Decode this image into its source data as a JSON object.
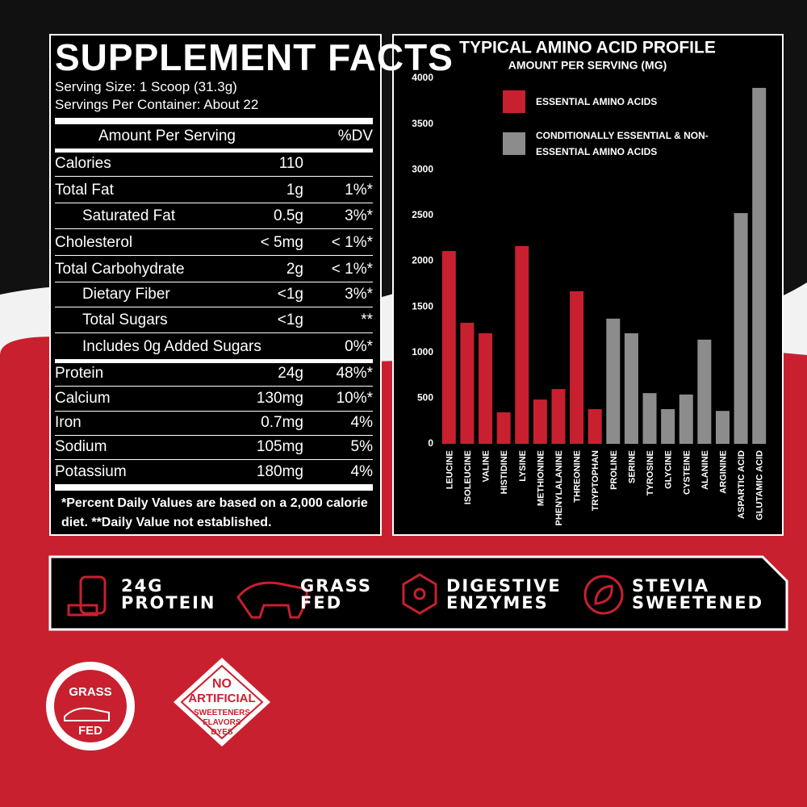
{
  "facts": {
    "title": "SUPPLEMENT FACTS",
    "serving_size": "Serving Size: 1 Scoop (31.3g)",
    "servings": "Servings Per Container: About 22",
    "header": {
      "amount": "Amount Per Serving",
      "dv": "%DV"
    },
    "rows": [
      [
        "Calories",
        "110",
        null
      ],
      [
        "Total Fat",
        "1g",
        "1%*"
      ],
      [
        "Saturated Fat",
        "0.5g",
        "3%*"
      ],
      [
        "Cholesterol",
        "< 5mg",
        "< 1%*"
      ],
      [
        "Total Carbohydrate",
        "2g",
        "< 1%*"
      ],
      [
        "Dietary Fiber",
        "<1g",
        "3%*"
      ],
      [
        "Total Sugars",
        "<1g",
        "**"
      ],
      [
        "Includes 0g Added Sugars",
        null,
        "0%*"
      ],
      [
        "Protein",
        "24g",
        "48%*"
      ],
      [
        "Calcium",
        "130mg",
        "10%*"
      ],
      [
        "Iron",
        "0.7mg",
        "4%"
      ],
      [
        "Sodium",
        "105mg",
        "5%"
      ],
      [
        "Potassium",
        "180mg",
        "4%"
      ]
    ],
    "footnote": "*Percent Daily Values are based on a 2,000 calorie diet. **Daily Value not established."
  },
  "chart_data": {
    "type": "bar",
    "title": "TYPICAL AMINO ACID PROFILE",
    "subtitle": "AMOUNT PER SERVING (MG)",
    "categories": [
      "LEUCINE",
      "ISOLEUCINE",
      "VALINE",
      "HISTIDINE",
      "LYSINE",
      "METHIONINE",
      "PHENYLALANINE",
      "THREONINE",
      "TRYPTOPHAN",
      "PROLINE",
      "SERINE",
      "TYROSINE",
      "GLYCINE",
      "CYSTEINE",
      "ALANINE",
      "ARGININE",
      "ASPARTIC ACID",
      "GLUTAMIC ACID"
    ],
    "series": [
      {
        "name": "ESSENTIAL AMINO ACIDS",
        "color": "#c8202f",
        "values": [
          2110,
          1325,
          1210,
          345,
          2165,
          485,
          600,
          1670,
          380,
          null,
          null,
          null,
          null,
          null,
          null,
          null,
          null,
          null
        ]
      },
      {
        "name": "CONDITIONALLY ESSENTIAL & NON-ESSENTIAL AMINO ACIDS",
        "color": "#8c8c8c",
        "values": [
          null,
          null,
          null,
          null,
          null,
          null,
          null,
          null,
          null,
          1370,
          1210,
          555,
          380,
          540,
          1140,
          360,
          2525,
          3895
        ]
      }
    ],
    "ylim": [
      0,
      4000
    ],
    "yticks": [
      0,
      500,
      1000,
      1500,
      2000,
      2500,
      3000,
      3500,
      4000
    ]
  },
  "features": [
    [
      "24G",
      "PROTEIN"
    ],
    [
      "GRASS",
      "FED"
    ],
    [
      "DIGESTIVE",
      "ENZYMES"
    ],
    [
      "STEVIA",
      "SWEETENED"
    ]
  ],
  "badges": {
    "grass_fed": [
      "GRASS",
      "FED"
    ],
    "no_artificial": [
      "NO",
      "ARTIFICIAL",
      "SWEETENERS",
      "FLAVORS",
      "DYES"
    ]
  }
}
